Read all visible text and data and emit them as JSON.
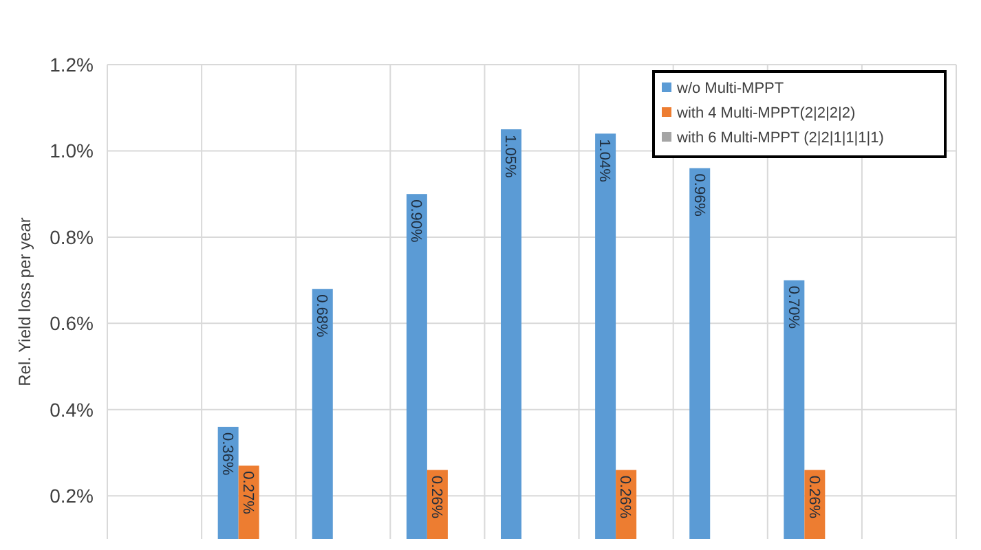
{
  "chart_data": {
    "type": "bar",
    "ylabel": "Rel. Yield loss per year",
    "categories": [
      null,
      null,
      null,
      null,
      null,
      null,
      null,
      null,
      null
    ],
    "series": [
      {
        "name": "w/o Multi-MPPT",
        "color": "#5b9bd5",
        "values": [
          null,
          0.36,
          0.68,
          0.9,
          1.05,
          1.04,
          0.96,
          0.7,
          null
        ],
        "value_labels": [
          null,
          "0.36%",
          "0.68%",
          "0.90%",
          "1.05%",
          "1.04%",
          "0.96%",
          "0.70%",
          null
        ]
      },
      {
        "name": "with 4 Multi-MPPT(2|2|2|2)",
        "color": "#ed7d31",
        "values": [
          null,
          0.27,
          null,
          0.26,
          null,
          0.26,
          null,
          0.26,
          null
        ],
        "value_labels": [
          null,
          "0.27%",
          null,
          "0.26%",
          null,
          "0.26%",
          null,
          "0.26%",
          null
        ]
      },
      {
        "name": "with 6 Multi-MPPT (2|2|1|1|1|1)",
        "color": "#a5a5a5",
        "values": [
          null,
          null,
          null,
          null,
          null,
          null,
          null,
          null,
          null
        ]
      }
    ],
    "ylim": [
      0.1,
      1.2
    ],
    "yticks": [
      {
        "value": 0.2,
        "label": "0.2%"
      },
      {
        "value": 0.4,
        "label": "0.4%"
      },
      {
        "value": 0.6,
        "label": "0.6%"
      },
      {
        "value": 0.8,
        "label": "0.8%"
      },
      {
        "value": 1.0,
        "label": "1.0%"
      },
      {
        "value": 1.2,
        "label": "1.2%"
      }
    ],
    "tick_labels": "y",
    "grid": true,
    "legend": "top right"
  }
}
